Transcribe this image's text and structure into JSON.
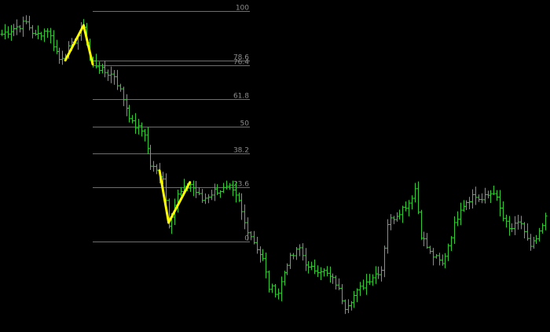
{
  "chart_data": {
    "type": "ohlc",
    "background": "#000000",
    "bar_color": "#32cd32",
    "zigzag_color": "#ffff00",
    "level_line_color": "#6e6e6e",
    "grid": false,
    "y_range": [
      -30,
      102
    ],
    "x_range": [
      0,
      179
    ],
    "fib_levels": [
      {
        "label": "100",
        "value": 100
      },
      {
        "label": "78.6",
        "value": 78.6
      },
      {
        "label": "76.4",
        "value": 76.4
      },
      {
        "label": "61.8",
        "value": 61.8
      },
      {
        "label": "50",
        "value": 50
      },
      {
        "label": "38.2",
        "value": 38.2
      },
      {
        "label": "23.6",
        "value": 23.6
      },
      {
        "label": "0",
        "value": 0
      }
    ],
    "zigzag": [
      {
        "i": 21,
        "v": 78.6
      },
      {
        "i": 27,
        "v": 93.8
      },
      {
        "i": 30,
        "v": 76.9
      },
      {
        "i": 52,
        "v": 30.8
      },
      {
        "i": 55,
        "v": 8.2
      },
      {
        "i": 62,
        "v": 25.7
      }
    ],
    "waypoints": [
      [
        0,
        90
      ],
      [
        8,
        95
      ],
      [
        11,
        89
      ],
      [
        15,
        92
      ],
      [
        19,
        79
      ],
      [
        23,
        85
      ],
      [
        27,
        94
      ],
      [
        29,
        79
      ],
      [
        33,
        74
      ],
      [
        37,
        72
      ],
      [
        40,
        62
      ],
      [
        43,
        51
      ],
      [
        47,
        47
      ],
      [
        49,
        33
      ],
      [
        53,
        28
      ],
      [
        55,
        8
      ],
      [
        58,
        20
      ],
      [
        62,
        25
      ],
      [
        66,
        18
      ],
      [
        70,
        22
      ],
      [
        75,
        23
      ],
      [
        78,
        17
      ],
      [
        80,
        8
      ],
      [
        86,
        -8
      ],
      [
        88,
        -20
      ],
      [
        91,
        -22
      ],
      [
        94,
        -9
      ],
      [
        98,
        -3
      ],
      [
        101,
        -12
      ],
      [
        105,
        -12
      ],
      [
        110,
        -18
      ],
      [
        113,
        -28
      ],
      [
        117,
        -22
      ],
      [
        121,
        -16
      ],
      [
        125,
        -12
      ],
      [
        127,
        8
      ],
      [
        130,
        12
      ],
      [
        134,
        17
      ],
      [
        136,
        23
      ],
      [
        138,
        3
      ],
      [
        141,
        -5
      ],
      [
        145,
        -10
      ],
      [
        148,
        3
      ],
      [
        151,
        15
      ],
      [
        155,
        20
      ],
      [
        158,
        18
      ],
      [
        162,
        22
      ],
      [
        165,
        10
      ],
      [
        167,
        5
      ],
      [
        171,
        8
      ],
      [
        174,
        -3
      ],
      [
        177,
        3
      ],
      [
        179,
        10
      ]
    ]
  }
}
